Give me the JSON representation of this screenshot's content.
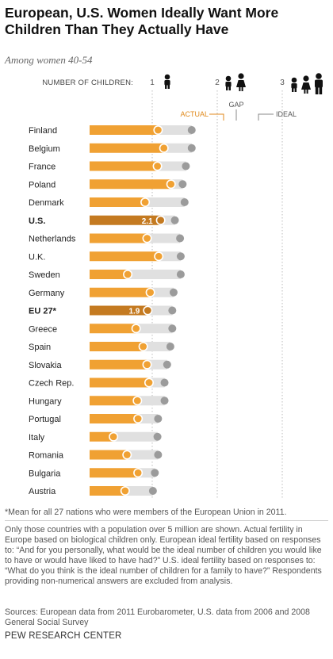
{
  "title": "European, U.S. Women Ideally Want More Children Than They Actually Have",
  "subtitle": "Among women 40-54",
  "chart_data": {
    "type": "bar",
    "axis_label": "NUMBER OF CHILDREN:",
    "axis_ticks": [
      1,
      2,
      3
    ],
    "xlim": [
      0,
      3.3
    ],
    "legend": {
      "actual": "ACTUAL",
      "gap": "GAP",
      "ideal": "IDEAL"
    },
    "categories": [
      "Finland",
      "Belgium",
      "France",
      "Poland",
      "Denmark",
      "U.S.",
      "Netherlands",
      "U.K.",
      "Sweden",
      "Germany",
      "EU 27*",
      "Greece",
      "Spain",
      "Slovakia",
      "Czech Rep.",
      "Hungary",
      "Portugal",
      "Italy",
      "Romania",
      "Bulgaria",
      "Austria"
    ],
    "highlighted": [
      "U.S.",
      "EU 27*"
    ],
    "series": [
      {
        "name": "ACTUAL",
        "values": [
          2.06,
          2.15,
          2.05,
          2.26,
          1.86,
          2.1,
          1.89,
          2.07,
          1.59,
          1.94,
          1.9,
          1.72,
          1.83,
          1.89,
          1.92,
          1.74,
          1.75,
          1.37,
          1.58,
          1.75,
          1.55
        ]
      },
      {
        "name": "IDEAL",
        "values": [
          2.58,
          2.58,
          2.49,
          2.44,
          2.47,
          2.32,
          2.4,
          2.41,
          2.41,
          2.3,
          2.28,
          2.28,
          2.25,
          2.2,
          2.16,
          2.16,
          2.06,
          2.05,
          2.06,
          2.01,
          1.98
        ]
      }
    ],
    "data_labels": {
      "U.S.": "2.1",
      "EU 27*": "1.9"
    },
    "colors": {
      "actual": "#f0a133",
      "actual_highlight": "#c47a21",
      "gap": "#e0e0e0",
      "ideal": "#9b9b9b",
      "actual_dot_stroke": "#ffffff"
    }
  },
  "footnote": "*Mean for all 27 nations who were members of the European Union in 2011.",
  "methodology": "Only those countries with a population over 5 million are shown. Actual fertility in Europe based on biological children only. European ideal fertility based on responses to: “And for you personally, what would be the ideal number of children you would like to have or would have liked to have had?” U.S. ideal fertility based on responses to: “What do you think is the ideal number of children for a family to have?” Respondents providing non-numerical answers are excluded from analysis.",
  "sources": "Sources: European data from 2011 Eurobarometer, U.S. data from 2006 and 2008 General Social Survey",
  "brand": "PEW RESEARCH CENTER"
}
